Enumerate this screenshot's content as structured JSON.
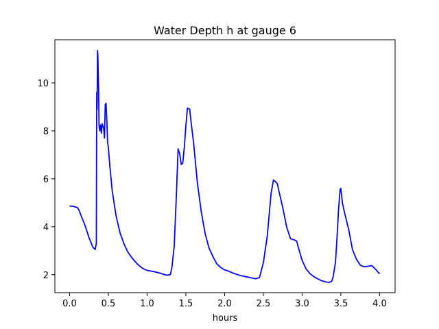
{
  "chart_data": {
    "type": "line",
    "title": "Water Depth h at gauge 6",
    "xlabel": "hours",
    "ylabel": "",
    "xlim": [
      -0.19,
      4.2
    ],
    "ylim": [
      1.25,
      11.8
    ],
    "xticks": [
      0.0,
      0.5,
      1.0,
      1.5,
      2.0,
      2.5,
      3.0,
      3.5,
      4.0
    ],
    "xtick_labels": [
      "0.0",
      "0.5",
      "1.0",
      "1.5",
      "2.0",
      "2.5",
      "3.0",
      "3.5",
      "4.0"
    ],
    "yticks": [
      2,
      4,
      6,
      8,
      10
    ],
    "ytick_labels": [
      "2",
      "4",
      "6",
      "8",
      "10"
    ],
    "grid": false,
    "legend": null,
    "series": [
      {
        "color": "#0000ff",
        "x": [
          0.0,
          0.05,
          0.1,
          0.12,
          0.15,
          0.2,
          0.25,
          0.3,
          0.33,
          0.345,
          0.35,
          0.355,
          0.36,
          0.365,
          0.37,
          0.375,
          0.38,
          0.39,
          0.4,
          0.41,
          0.42,
          0.43,
          0.44,
          0.45,
          0.46,
          0.47,
          0.48,
          0.485,
          0.49,
          0.5,
          0.51,
          0.52,
          0.55,
          0.6,
          0.65,
          0.7,
          0.75,
          0.8,
          0.85,
          0.9,
          0.95,
          1.0,
          1.05,
          1.1,
          1.15,
          1.2,
          1.25,
          1.3,
          1.32,
          1.35,
          1.38,
          1.4,
          1.42,
          1.44,
          1.46,
          1.48,
          1.5,
          1.52,
          1.55,
          1.57,
          1.6,
          1.65,
          1.7,
          1.75,
          1.8,
          1.85,
          1.9,
          1.95,
          2.0,
          2.05,
          2.1,
          2.15,
          2.2,
          2.3,
          2.4,
          2.45,
          2.5,
          2.55,
          2.6,
          2.63,
          2.65,
          2.68,
          2.7,
          2.75,
          2.8,
          2.85,
          2.9,
          2.93,
          2.95,
          3.0,
          3.05,
          3.1,
          3.15,
          3.2,
          3.25,
          3.3,
          3.35,
          3.38,
          3.4,
          3.43,
          3.45,
          3.47,
          3.49,
          3.5,
          3.52,
          3.55,
          3.6,
          3.65,
          3.7,
          3.75,
          3.8,
          3.85,
          3.9,
          3.95,
          4.0
        ],
        "y": [
          4.87,
          4.85,
          4.8,
          4.7,
          4.45,
          4.05,
          3.55,
          3.15,
          3.05,
          3.3,
          9.6,
          8.9,
          11.35,
          11.1,
          10.3,
          9.6,
          8.2,
          8.0,
          8.25,
          7.9,
          8.3,
          8.2,
          8.1,
          7.7,
          9.1,
          9.15,
          8.5,
          8.0,
          7.55,
          7.3,
          6.9,
          6.5,
          5.5,
          4.45,
          3.75,
          3.3,
          2.95,
          2.72,
          2.53,
          2.37,
          2.25,
          2.18,
          2.15,
          2.12,
          2.08,
          2.03,
          1.98,
          2.0,
          2.3,
          3.2,
          5.5,
          7.25,
          7.05,
          6.6,
          6.65,
          7.3,
          8.2,
          8.95,
          8.9,
          8.3,
          7.5,
          5.8,
          4.6,
          3.7,
          3.1,
          2.75,
          2.45,
          2.3,
          2.2,
          2.15,
          2.08,
          2.02,
          1.97,
          1.9,
          1.83,
          1.88,
          2.5,
          3.6,
          5.4,
          5.95,
          5.9,
          5.8,
          5.5,
          4.8,
          4.0,
          3.5,
          3.45,
          3.4,
          3.15,
          2.6,
          2.25,
          2.05,
          1.92,
          1.83,
          1.75,
          1.7,
          1.68,
          1.72,
          1.9,
          2.5,
          3.5,
          4.7,
          5.55,
          5.6,
          5.0,
          4.55,
          3.9,
          3.05,
          2.65,
          2.4,
          2.33,
          2.35,
          2.38,
          2.22,
          2.03
        ]
      }
    ]
  }
}
